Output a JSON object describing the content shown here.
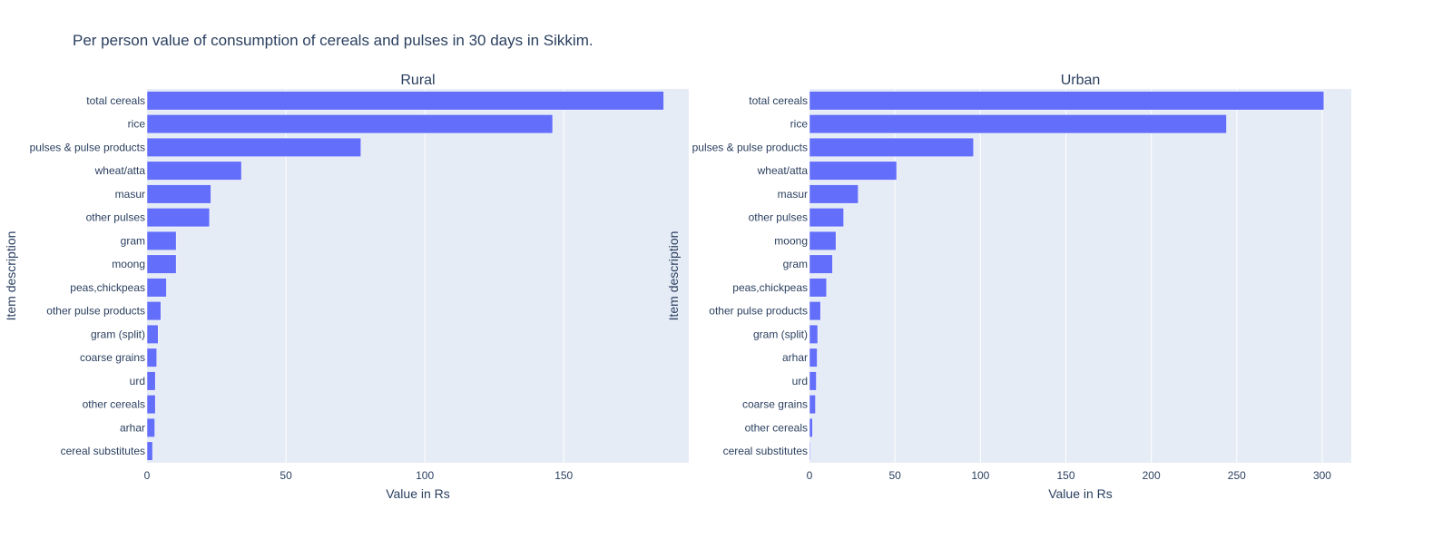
{
  "title": "Per person value of consumption of cereals and pulses in 30 days in Sikkim.",
  "chart_data": [
    {
      "type": "bar",
      "orientation": "horizontal",
      "title": "Rural",
      "xlabel": "Value in Rs",
      "ylabel": "Item description",
      "xlim": [
        0,
        195
      ],
      "xticks": [
        0,
        50,
        100,
        150
      ],
      "grid": true,
      "bar_color": "#636efa",
      "plot_bg": "#e5ecf6",
      "categories": [
        "total cereals",
        "rice",
        "pulses & pulse products",
        "wheat/atta",
        "masur",
        "other pulses",
        "gram",
        "moong",
        "peas,chickpeas",
        "other pulse products",
        "gram (split)",
        "coarse grains",
        "urd",
        "other cereals",
        "arhar",
        "cereal substitutes"
      ],
      "values": [
        186,
        146,
        77,
        34,
        23,
        22.5,
        10.5,
        10.5,
        7,
        5,
        4,
        3.5,
        3,
        3,
        2.8,
        2
      ]
    },
    {
      "type": "bar",
      "orientation": "horizontal",
      "title": "Urban",
      "xlabel": "Value in Rs",
      "ylabel": "Item description",
      "xlim": [
        0,
        317
      ],
      "xticks": [
        0,
        50,
        100,
        150,
        200,
        250,
        300
      ],
      "grid": true,
      "bar_color": "#636efa",
      "plot_bg": "#e5ecf6",
      "categories": [
        "total cereals",
        "rice",
        "pulses & pulse products",
        "wheat/atta",
        "masur",
        "other pulses",
        "moong",
        "gram",
        "peas,chickpeas",
        "other pulse products",
        "gram (split)",
        "arhar",
        "urd",
        "coarse grains",
        "other cereals",
        "cereal substitutes"
      ],
      "values": [
        301,
        244,
        96,
        51,
        28.5,
        20,
        15.5,
        13.5,
        10,
        6.5,
        4.8,
        4.5,
        4,
        3.5,
        1.8,
        0.5
      ]
    }
  ]
}
